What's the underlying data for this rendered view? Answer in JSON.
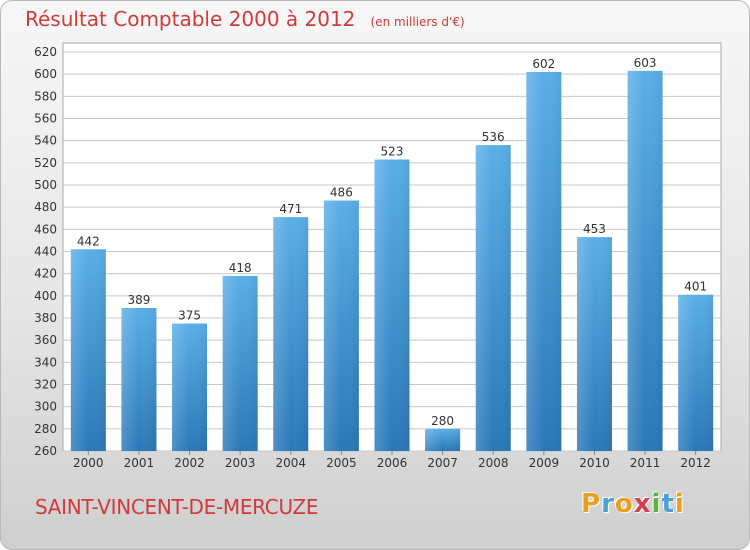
{
  "header": {
    "title": "Résultat Comptable 2000 à 2012",
    "subtitle": "(en milliers d'€)"
  },
  "commune": "SAINT-VINCENT-DE-MERCUZE",
  "logo": {
    "text": "Proxiti",
    "letters": [
      "P",
      "r",
      "o",
      "x",
      "i",
      "t",
      "i"
    ],
    "colors": [
      "#e8a020",
      "#4aa0d8",
      "#e8a020",
      "#d04050",
      "#60b040",
      "#4aa0d8",
      "#e8a020"
    ]
  },
  "chart_data": {
    "type": "bar",
    "categories": [
      "2000",
      "2001",
      "2002",
      "2003",
      "2004",
      "2005",
      "2006",
      "2007",
      "2008",
      "2009",
      "2010",
      "2011",
      "2012"
    ],
    "values": [
      442,
      389,
      375,
      418,
      471,
      486,
      523,
      280,
      536,
      602,
      453,
      603,
      401
    ],
    "title": "Résultat Comptable 2000 à 2012",
    "subtitle": "(en milliers d'€)",
    "xlabel": "",
    "ylabel": "",
    "ylim": [
      260,
      620
    ],
    "yticks": [
      260,
      280,
      300,
      320,
      340,
      360,
      380,
      400,
      420,
      440,
      460,
      480,
      500,
      520,
      540,
      560,
      580,
      600,
      620
    ],
    "grid": true,
    "bar_color": "#4a9fdc"
  }
}
